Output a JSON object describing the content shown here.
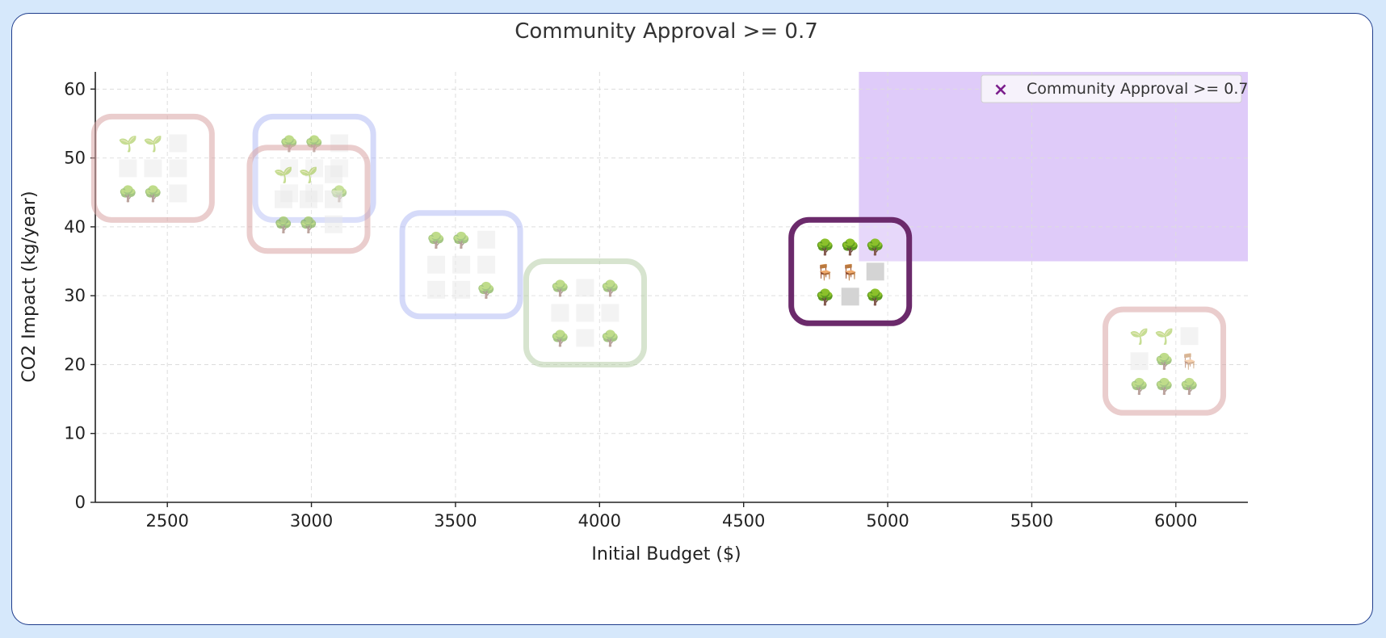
{
  "chart_data": {
    "type": "scatter",
    "title": "Community Approval >= 0.7",
    "xlabel": "Initial Budget ($)",
    "ylabel": "CO2 Impact (kg/year)",
    "xlim": [
      2250,
      6250
    ],
    "ylim": [
      0,
      62.5
    ],
    "xticks": [
      "2500",
      "3000",
      "3500",
      "4000",
      "4500",
      "5000",
      "5500",
      "6000"
    ],
    "yticks": [
      "0",
      "10",
      "20",
      "30",
      "40",
      "50",
      "60"
    ],
    "grid": true,
    "legend": {
      "position": "top-right",
      "label": "Community Approval >= 0.7",
      "marker": "x",
      "color": "#7b1e8c"
    },
    "highlight_region": {
      "x": [
        4900,
        6250
      ],
      "y": [
        35,
        62.5
      ],
      "color": "#c9a8f5"
    },
    "points": [
      {
        "x": 2450,
        "y": 48.5,
        "frame_color": "#d9a6a6",
        "faded": true,
        "grid": [
          "sprout",
          "sprout",
          "empty",
          "empty",
          "empty",
          "empty",
          "tree",
          "tree",
          "empty"
        ]
      },
      {
        "x": 3010,
        "y": 48.5,
        "frame_color": "#b3bcf5",
        "faded": true,
        "grid": [
          "tree",
          "tree",
          "empty",
          "empty",
          "empty",
          "empty",
          "empty",
          "empty",
          "tree"
        ]
      },
      {
        "x": 2990,
        "y": 44.0,
        "frame_color": "#d9a6a6",
        "faded": true,
        "grid": [
          "sprout",
          "sprout",
          "empty",
          "empty",
          "empty",
          "empty",
          "tree",
          "tree",
          "empty"
        ]
      },
      {
        "x": 3520,
        "y": 34.5,
        "frame_color": "#b3bcf5",
        "faded": true,
        "grid": [
          "tree",
          "tree",
          "empty",
          "empty",
          "empty",
          "empty",
          "empty",
          "empty",
          "tree"
        ]
      },
      {
        "x": 3950,
        "y": 27.5,
        "frame_color": "#b7cfa8",
        "faded": true,
        "grid": [
          "tree",
          "empty",
          "tree",
          "empty",
          "empty",
          "empty",
          "tree",
          "empty",
          "tree"
        ]
      },
      {
        "x": 4870,
        "y": 33.5,
        "frame_color": "#6b2a6b",
        "faded": false,
        "grid": [
          "tree",
          "tree",
          "tree",
          "chair",
          "chair",
          "empty",
          "tree",
          "empty",
          "tree"
        ]
      },
      {
        "x": 5960,
        "y": 20.5,
        "frame_color": "#d9a6a6",
        "faded": true,
        "grid": [
          "sprout",
          "sprout",
          "empty",
          "empty",
          "tree",
          "chair",
          "tree",
          "tree",
          "tree"
        ]
      }
    ]
  }
}
